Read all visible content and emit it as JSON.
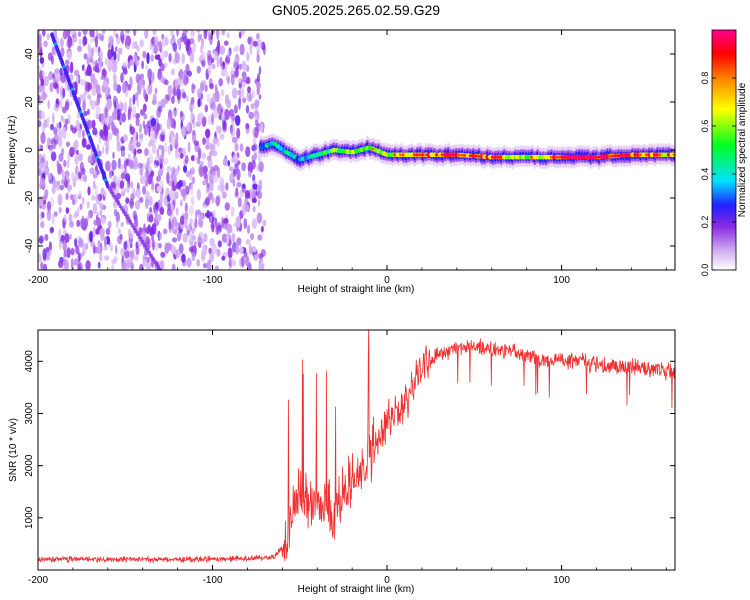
{
  "chart_data": [
    {
      "type": "heatmap",
      "title": "GN05.2025.265.02.59.G29",
      "xlabel": "Height of straight line (km)",
      "ylabel": "Frequency (Hz)",
      "xlim": [
        -200,
        165
      ],
      "ylim": [
        -50,
        50
      ],
      "xticks": [
        -200,
        -100,
        0,
        100
      ],
      "yticks": [
        -40,
        -20,
        0,
        20,
        40
      ],
      "colorbar": {
        "label": "Normalized spectral amplitude",
        "range": [
          0,
          1
        ],
        "ticks": [
          0.0,
          0.2,
          0.4,
          0.6,
          0.8
        ]
      },
      "noise_region_x": [
        -200,
        -70
      ],
      "diagonal_streak": {
        "x": [
          -192,
          -160
        ],
        "y": [
          48,
          -15
        ]
      },
      "carrier_trace": {
        "x": [
          -72,
          -65,
          -60,
          -50,
          -40,
          -30,
          -20,
          -10,
          0,
          20,
          40,
          60,
          80,
          100,
          120,
          140,
          165
        ],
        "y": [
          1,
          3,
          0,
          -4,
          -2,
          0,
          -1,
          1,
          -2,
          -2,
          -2,
          -3,
          -3,
          -3,
          -3,
          -2,
          -2
        ],
        "amplitude": [
          0.35,
          0.45,
          0.4,
          0.35,
          0.5,
          0.55,
          0.6,
          0.6,
          0.65,
          0.75,
          0.8,
          0.8,
          0.6,
          0.85,
          0.9,
          0.8,
          0.7
        ]
      }
    },
    {
      "type": "line",
      "xlabel": "Height of straight line (km)",
      "ylabel": "SNR (10 * v/v)",
      "xlim": [
        -200,
        165
      ],
      "ylim": [
        0,
        4600
      ],
      "xticks": [
        -200,
        -100,
        0,
        100
      ],
      "yticks": [
        1000,
        2000,
        3000,
        4000
      ],
      "color": "#f03030",
      "series": [
        {
          "name": "SNR",
          "x": [
            -200,
            -180,
            -160,
            -140,
            -120,
            -100,
            -80,
            -65,
            -58,
            -55,
            -50,
            -45,
            -40,
            -35,
            -30,
            -25,
            -20,
            -15,
            -10,
            -5,
            0,
            5,
            10,
            15,
            20,
            25,
            30,
            40,
            50,
            60,
            70,
            80,
            90,
            100,
            110,
            120,
            130,
            140,
            150,
            165
          ],
          "y": [
            200,
            210,
            200,
            205,
            200,
            210,
            220,
            240,
            500,
            1100,
            1500,
            1300,
            1200,
            1300,
            1100,
            1500,
            1700,
            1900,
            2200,
            2500,
            2900,
            3000,
            3200,
            3500,
            3900,
            4000,
            4150,
            4250,
            4300,
            4250,
            4200,
            4150,
            4000,
            4050,
            4000,
            3950,
            3900,
            3900,
            3850,
            3800
          ]
        }
      ]
    }
  ]
}
